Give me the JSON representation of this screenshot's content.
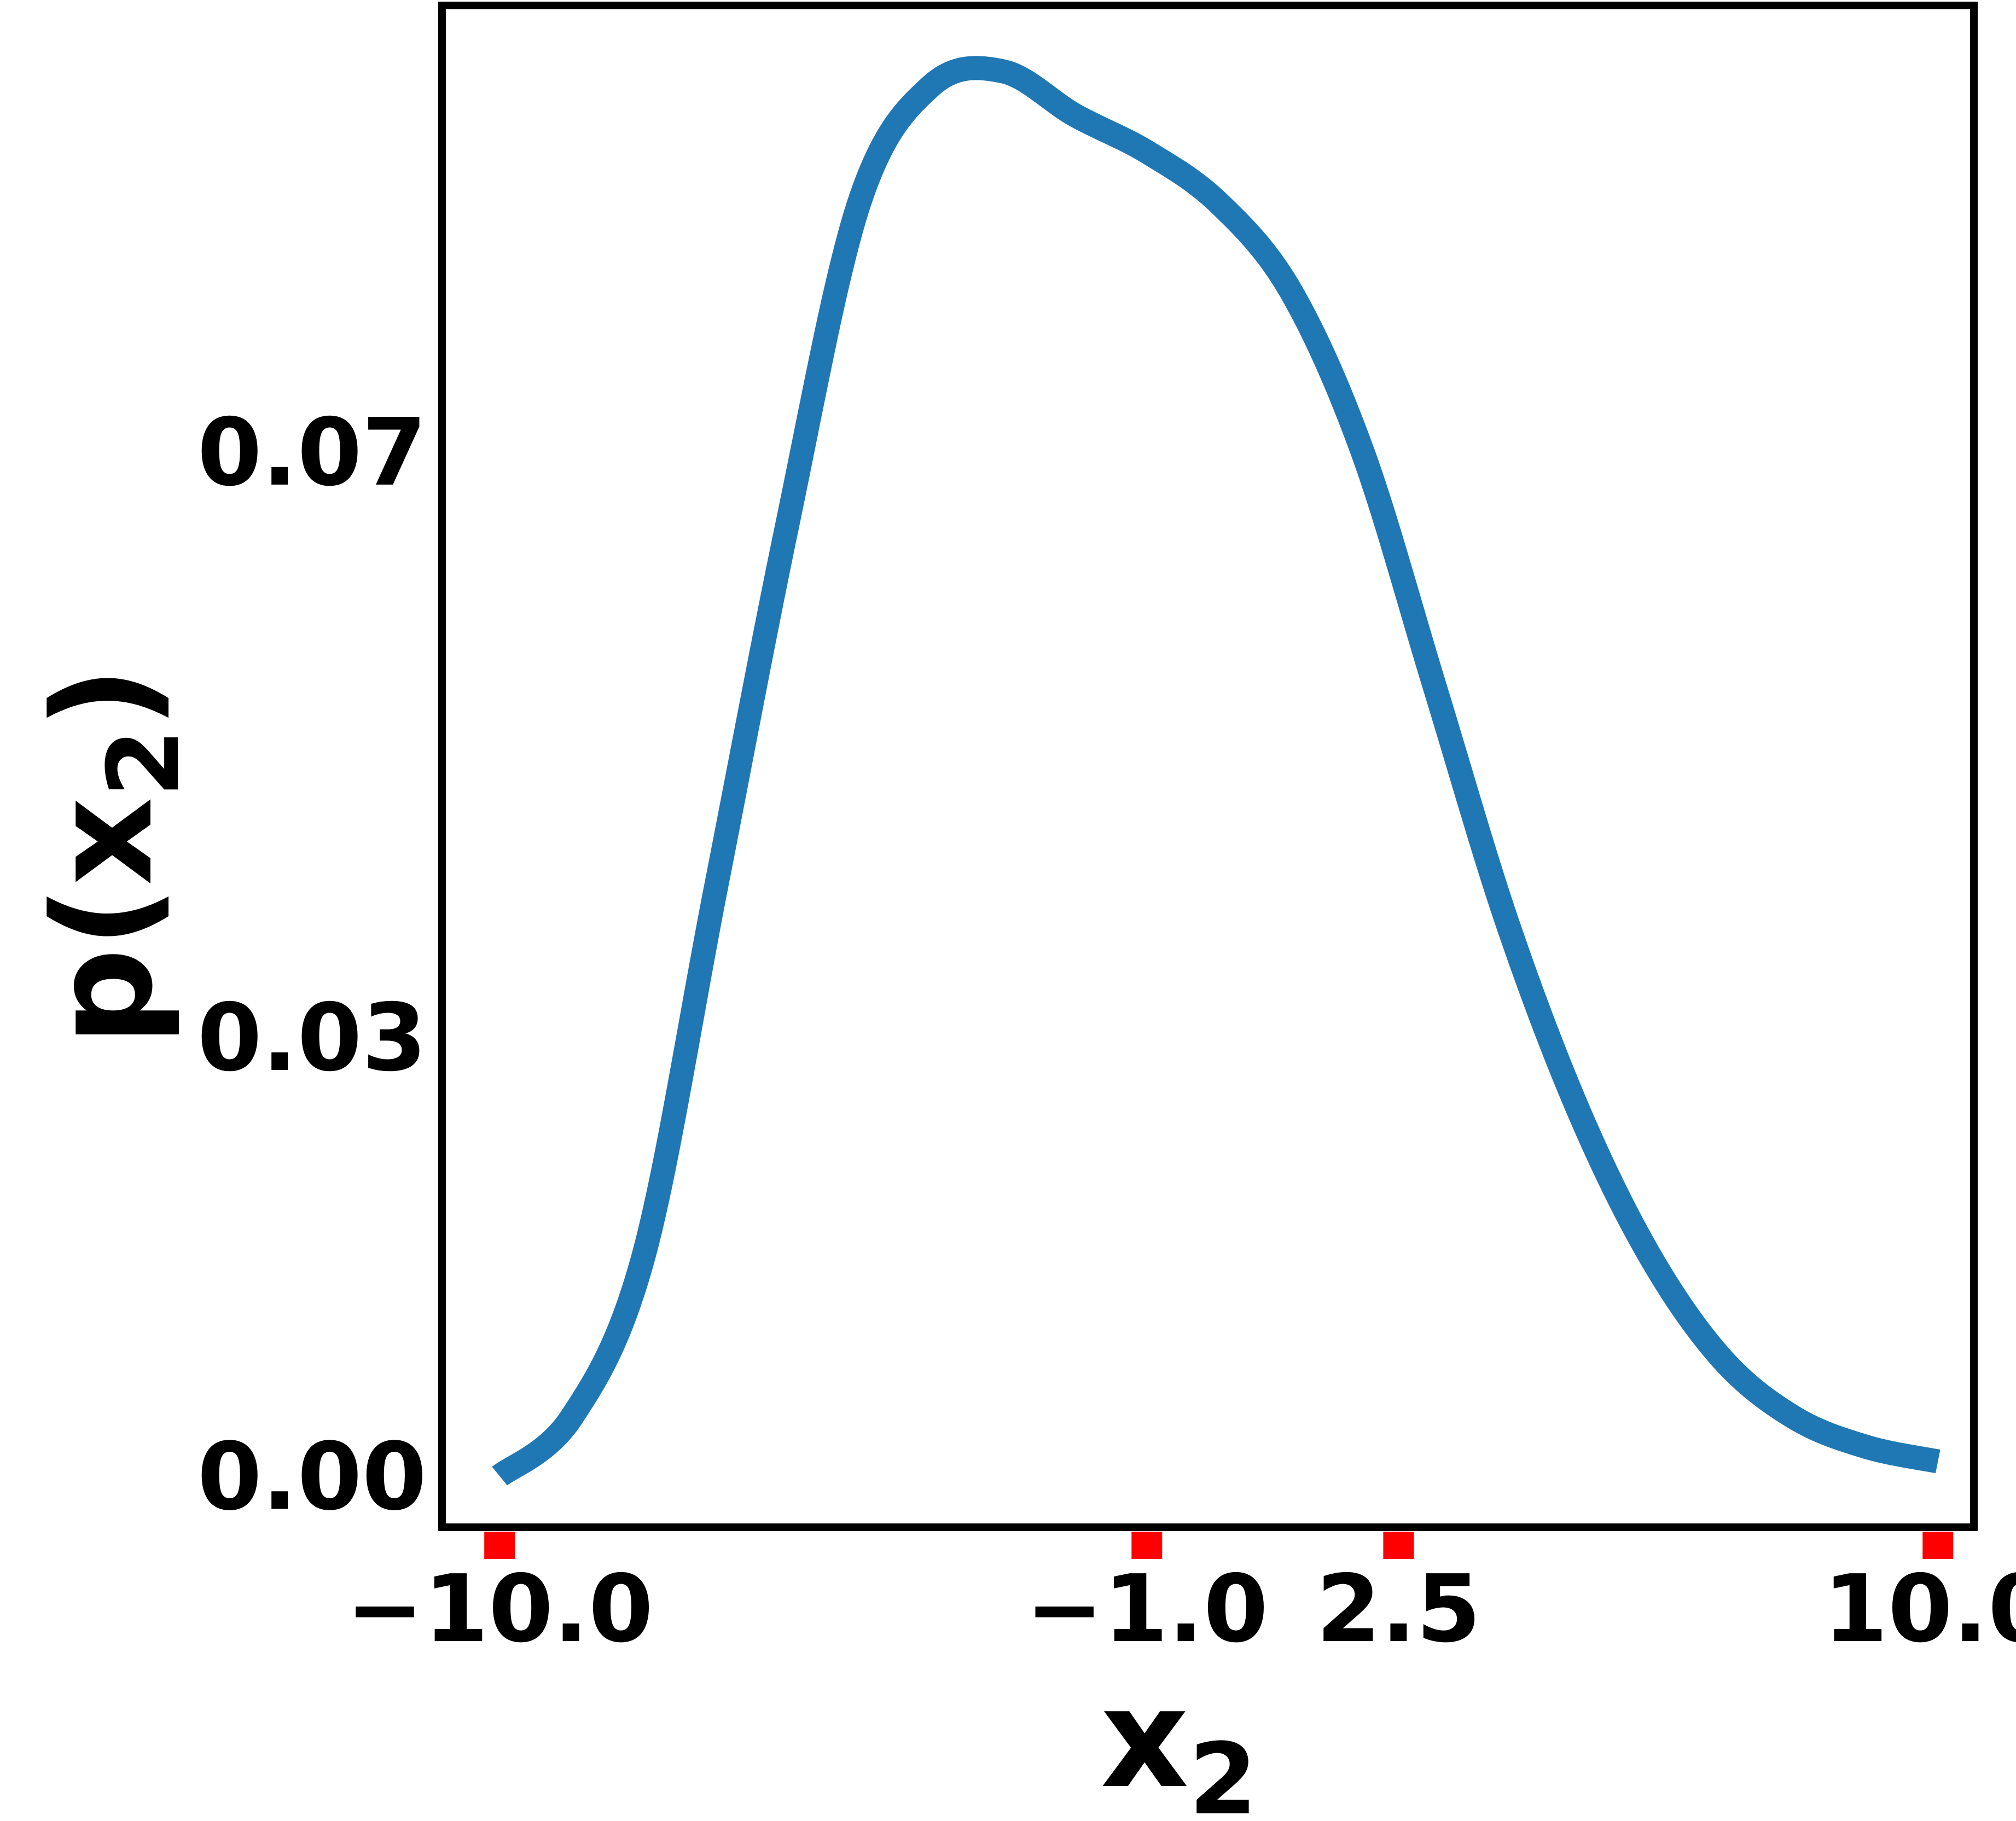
{
  "chart_data": {
    "type": "line",
    "xlabel_main": "x",
    "xlabel_sub": "2",
    "ylabel_prefix": "p(",
    "ylabel_var": "x",
    "ylabel_sub": "2",
    "ylabel_suffix": ")",
    "xlim": [
      -10.8,
      10.5
    ],
    "ylim": [
      -0.0035,
      0.1005
    ],
    "x_ticks": [
      -10.0,
      -1.0,
      2.5,
      10.0
    ],
    "x_tick_labels": [
      "−10.0",
      "−1.0",
      "2.5",
      "10.0"
    ],
    "y_ticks": [
      0.0,
      0.03,
      0.07
    ],
    "y_tick_labels": [
      "0.00",
      "0.03",
      "0.07"
    ],
    "x_tick_marker_color": "#ff0000",
    "grid": false,
    "legend": "none",
    "series": [
      {
        "color": "#1f77b4",
        "x": [
          -10.0,
          -9.0,
          -8.0,
          -7.0,
          -6.0,
          -5.0,
          -4.0,
          -3.0,
          -2.0,
          -1.0,
          0.0,
          1.0,
          2.0,
          3.0,
          4.0,
          5.0,
          6.0,
          7.0,
          8.0,
          9.0,
          10.0
        ],
        "y": [
          0.0,
          0.004,
          0.015,
          0.04,
          0.065,
          0.087,
          0.095,
          0.096,
          0.093,
          0.0905,
          0.087,
          0.081,
          0.07,
          0.054,
          0.038,
          0.025,
          0.015,
          0.008,
          0.004,
          0.002,
          0.001
        ]
      }
    ]
  }
}
